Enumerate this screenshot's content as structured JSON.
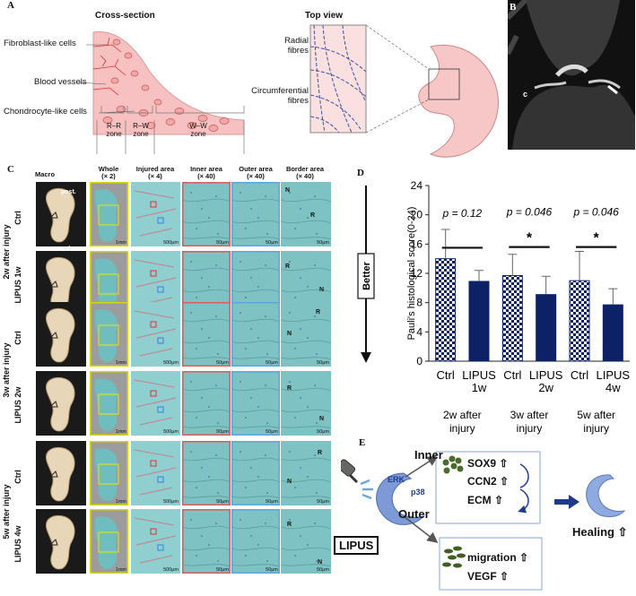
{
  "panel_labels": {
    "a": "A",
    "b": "B",
    "c": "C",
    "d": "D",
    "e": "E"
  },
  "panel_a": {
    "cross_section_title": "Cross-section",
    "top_view_title": "Top view",
    "fibroblast": "Fibroblast-like cells",
    "vessels": "Blood vessels",
    "chondrocyte": "Chondrocyte-like cells",
    "radial": "Radial\nfibres",
    "circumferential": "Circumferential\nfibres",
    "zone_rr": "R–R\nzone",
    "zone_rw": "R–W\nzone",
    "zone_ww": "W–W\nzone"
  },
  "panel_b": {
    "label_c": "c"
  },
  "panel_c": {
    "col_macro": "Macro",
    "col_whole": "Whole\n(× 2)",
    "col_injured": "Injured area\n(× 4)",
    "col_inner": "Inner area\n(× 40)",
    "col_outer": "Outer area\n(× 40)",
    "col_border": "Border area\n(× 40)",
    "post": "post.",
    "ant": "ant.",
    "groups": [
      {
        "label": "2w after injury",
        "rows": [
          "Ctrl",
          "LIPUS 1w"
        ]
      },
      {
        "label": "3w after injury",
        "rows": [
          "Ctrl",
          "LIPUS 2w"
        ]
      },
      {
        "label": "5w after injury",
        "rows": [
          "Ctrl",
          "LIPUS 4w"
        ]
      }
    ],
    "scale_whole": "1mm",
    "scale_injured": "500μm",
    "scale_hi": "50μm",
    "letter_n": "N",
    "letter_r": "R"
  },
  "chart_data": {
    "type": "bar",
    "ylabel": "Pauli's histological score(0-24)",
    "ylim": [
      0,
      24
    ],
    "yticks": [
      0,
      4,
      8,
      12,
      16,
      20,
      24
    ],
    "arrow_label": "Better",
    "bars": [
      {
        "label": "Ctrl",
        "value": 14.0,
        "err": 4.0,
        "pattern": "checker"
      },
      {
        "label": "LIPUS\n1w",
        "value": 10.9,
        "err": 1.5,
        "pattern": "solid"
      },
      {
        "label": "Ctrl",
        "value": 11.7,
        "err": 2.9,
        "pattern": "checker"
      },
      {
        "label": "LIPUS\n2w",
        "value": 9.1,
        "err": 2.5,
        "pattern": "solid"
      },
      {
        "label": "Ctrl",
        "value": 11.0,
        "err": 4.0,
        "pattern": "checker"
      },
      {
        "label": "LIPUS\n4w",
        "value": 7.7,
        "err": 2.2,
        "pattern": "solid"
      }
    ],
    "groups": [
      "2w after\ninjury",
      "3w after\ninjury",
      "5w after\ninjury"
    ],
    "pvalues": [
      "p = 0.12",
      "p = 0.046",
      "p = 0.046"
    ],
    "significance": [
      "",
      "*",
      "*"
    ],
    "colors": {
      "solid": "#0d2266",
      "checker_a": "#0d2266",
      "checker_b": "#ffffff"
    }
  },
  "panel_e": {
    "inner": "Inner",
    "outer": "Outer",
    "erk": "ERK",
    "p38": "p38",
    "lipus": "LIPUS",
    "sox9": "SOX9 ⇧",
    "ccn2": "CCN2 ⇧",
    "ecm": "ECM ⇧",
    "migration": "migration ⇧",
    "vegf": "VEGF ⇧",
    "healing": "Healing ⇧"
  }
}
